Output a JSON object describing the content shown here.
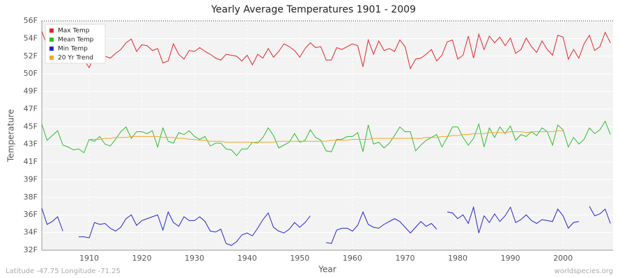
{
  "chart_data": {
    "type": "line",
    "title": "Yearly Average Temperatures 1901 - 2009",
    "xlabel": "Year",
    "ylabel": "Temperature",
    "footer_left": "Latitude -47.75 Longitude -71.25",
    "footer_right": "worldspecies.org",
    "grid": true,
    "legend": "top-left",
    "xlim": [
      1901,
      2009.5
    ],
    "xticks": [
      1910,
      1920,
      1930,
      1940,
      1950,
      1960,
      1970,
      1980,
      1990,
      2000
    ],
    "ylim": [
      32,
      56
    ],
    "yticks": [
      {
        "value": 32,
        "label": "32F"
      },
      {
        "value": 33.846,
        "label": "34F"
      },
      {
        "value": 35.692,
        "label": "36F"
      },
      {
        "value": 37.538,
        "label": "38F"
      },
      {
        "value": 39.385,
        "label": "39F"
      },
      {
        "value": 41.231,
        "label": "41F"
      },
      {
        "value": 43.077,
        "label": "43F"
      },
      {
        "value": 44.923,
        "label": "45F"
      },
      {
        "value": 46.769,
        "label": "47F"
      },
      {
        "value": 48.615,
        "label": "49F"
      },
      {
        "value": 50.462,
        "label": "50F"
      },
      {
        "value": 52.308,
        "label": "52F"
      },
      {
        "value": 54.154,
        "label": "54F"
      },
      {
        "value": 56,
        "label": "56F"
      }
    ],
    "x": [
      1901,
      1902,
      1903,
      1904,
      1905,
      1906,
      1907,
      1908,
      1909,
      1910,
      1911,
      1912,
      1913,
      1914,
      1915,
      1916,
      1917,
      1918,
      1919,
      1920,
      1921,
      1922,
      1923,
      1924,
      1925,
      1926,
      1927,
      1928,
      1929,
      1930,
      1931,
      1932,
      1933,
      1934,
      1935,
      1936,
      1937,
      1938,
      1939,
      1940,
      1941,
      1942,
      1943,
      1944,
      1945,
      1946,
      1947,
      1948,
      1949,
      1950,
      1951,
      1952,
      1953,
      1954,
      1955,
      1956,
      1957,
      1958,
      1959,
      1960,
      1961,
      1962,
      1963,
      1964,
      1965,
      1966,
      1967,
      1968,
      1969,
      1970,
      1971,
      1972,
      1973,
      1974,
      1975,
      1976,
      1977,
      1978,
      1979,
      1980,
      1981,
      1982,
      1983,
      1984,
      1985,
      1986,
      1987,
      1988,
      1989,
      1990,
      1991,
      1992,
      1993,
      1994,
      1995,
      1996,
      1997,
      1998,
      1999,
      2000,
      2001,
      2002,
      2003,
      2004,
      2005,
      2006,
      2007,
      2008,
      2009
    ],
    "series": [
      {
        "name": "Max Temp",
        "color": "#e3262b",
        "values": [
          54.9,
          53.4,
          53.2,
          53.6,
          52.2,
          52.9,
          52.3,
          52.6,
          51.9,
          51.1,
          52.4,
          53.6,
          52.3,
          52.1,
          52.6,
          53.0,
          53.7,
          54.1,
          52.8,
          53.5,
          53.4,
          52.9,
          53.1,
          51.6,
          51.8,
          53.6,
          52.5,
          52.0,
          52.9,
          52.8,
          53.2,
          52.8,
          52.5,
          52.1,
          51.9,
          52.5,
          52.4,
          52.3,
          51.8,
          52.4,
          51.4,
          52.5,
          52.1,
          53.1,
          52.2,
          52.8,
          53.6,
          53.3,
          52.9,
          52.2,
          53.1,
          53.7,
          53.2,
          53.3,
          51.9,
          51.9,
          53.2,
          53.0,
          53.3,
          53.6,
          53.4,
          51.2,
          54.0,
          52.5,
          53.9,
          52.9,
          53.1,
          52.8,
          54.0,
          53.3,
          51.0,
          52.0,
          52.1,
          52.5,
          53.0,
          51.8,
          52.4,
          53.8,
          54.0,
          52.0,
          52.4,
          54.4,
          52.1,
          54.6,
          53.0,
          54.4,
          53.7,
          54.3,
          53.4,
          54.2,
          52.6,
          53.0,
          54.2,
          53.3,
          52.7,
          53.9,
          53.0,
          52.4,
          54.5,
          54.3,
          52.0,
          53.0,
          52.1,
          53.6,
          54.5,
          52.9,
          53.3,
          54.8,
          53.7
        ]
      },
      {
        "name": "Mean Temp",
        "color": "#2dbe2d",
        "values": [
          45.2,
          43.5,
          44.0,
          44.5,
          43.0,
          42.8,
          42.5,
          42.6,
          42.2,
          43.6,
          43.4,
          43.9,
          43.1,
          42.9,
          43.6,
          44.4,
          44.9,
          43.7,
          44.4,
          44.4,
          44.2,
          44.5,
          42.8,
          44.8,
          43.4,
          43.2,
          44.3,
          44.1,
          44.5,
          43.9,
          43.6,
          43.9,
          42.9,
          43.2,
          43.2,
          42.6,
          42.5,
          41.9,
          42.6,
          42.6,
          43.3,
          43.2,
          43.8,
          44.8,
          44.0,
          42.7,
          43.0,
          43.3,
          44.2,
          43.3,
          43.5,
          44.6,
          43.8,
          43.5,
          42.4,
          42.3,
          43.6,
          43.6,
          43.9,
          43.9,
          44.3,
          42.3,
          45.1,
          43.1,
          43.3,
          42.7,
          43.2,
          44.0,
          44.9,
          44.4,
          44.4,
          42.4,
          43.0,
          43.5,
          43.8,
          44.1,
          42.8,
          43.8,
          44.9,
          44.9,
          43.8,
          43.0,
          43.7,
          45.2,
          42.8,
          44.8,
          43.8,
          44.9,
          44.2,
          45.0,
          43.5,
          44.1,
          43.9,
          44.4,
          44.0,
          44.8,
          44.4,
          43.0,
          45.1,
          44.6,
          42.8,
          43.8,
          43.1,
          43.6,
          44.8,
          44.2,
          44.6,
          45.5,
          44.1
        ]
      },
      {
        "name": "Min Temp",
        "color": "#2424d2",
        "values": [
          36.4,
          34.7,
          35.0,
          35.5,
          34.0,
          null,
          null,
          33.4,
          33.4,
          33.3,
          34.9,
          34.7,
          34.8,
          34.3,
          34.0,
          34.4,
          35.3,
          35.7,
          34.6,
          35.1,
          35.3,
          35.5,
          35.7,
          34.1,
          36.0,
          34.9,
          34.5,
          35.5,
          35.1,
          35.1,
          35.5,
          35.0,
          34.0,
          33.9,
          34.2,
          32.7,
          32.5,
          32.9,
          33.6,
          33.8,
          33.5,
          34.3,
          35.2,
          35.9,
          34.4,
          34.0,
          33.8,
          34.2,
          34.9,
          34.4,
          34.9,
          35.6,
          null,
          null,
          32.8,
          32.7,
          34.1,
          34.3,
          34.3,
          34.0,
          34.6,
          36.0,
          34.7,
          34.4,
          34.3,
          34.7,
          35.0,
          35.3,
          35.0,
          34.4,
          33.8,
          34.4,
          35.0,
          34.5,
          34.8,
          34.2,
          null,
          36.0,
          35.9,
          35.3,
          35.7,
          34.8,
          36.5,
          33.8,
          35.6,
          34.9,
          35.8,
          35.0,
          35.6,
          36.5,
          34.9,
          35.2,
          35.7,
          35.1,
          34.8,
          35.2,
          35.1,
          35.0,
          36.3,
          35.6,
          34.3,
          34.9,
          35.0,
          null,
          36.6,
          35.6,
          35.8,
          36.3,
          34.8
        ]
      },
      {
        "name": "20 Yr Trend",
        "color": "#f5a52a",
        "values": [
          null,
          null,
          null,
          null,
          null,
          null,
          null,
          null,
          null,
          43.6,
          43.6,
          43.6,
          43.7,
          43.7,
          43.8,
          43.8,
          43.8,
          43.9,
          43.9,
          43.9,
          43.9,
          43.9,
          43.9,
          43.8,
          43.8,
          43.8,
          43.7,
          43.7,
          43.6,
          43.6,
          43.5,
          43.5,
          43.4,
          43.4,
          43.4,
          43.3,
          43.3,
          43.3,
          43.3,
          43.3,
          43.3,
          43.3,
          43.3,
          43.3,
          43.3,
          43.4,
          43.4,
          43.4,
          43.4,
          43.4,
          43.4,
          43.4,
          43.4,
          43.4,
          43.4,
          43.5,
          43.5,
          43.5,
          43.5,
          43.6,
          43.6,
          43.6,
          43.6,
          43.7,
          43.7,
          43.7,
          43.7,
          43.7,
          43.7,
          43.7,
          43.7,
          43.7,
          43.7,
          43.8,
          43.8,
          43.8,
          43.9,
          43.9,
          44.0,
          44.0,
          44.1,
          44.1,
          44.2,
          44.2,
          44.2,
          44.3,
          44.3,
          44.3,
          44.3,
          44.4,
          44.4,
          44.4,
          44.3,
          44.4,
          44.4,
          44.4,
          44.4,
          44.4,
          44.5,
          44.5,
          null,
          null,
          null,
          null,
          null,
          null,
          null,
          null,
          null
        ]
      }
    ]
  }
}
